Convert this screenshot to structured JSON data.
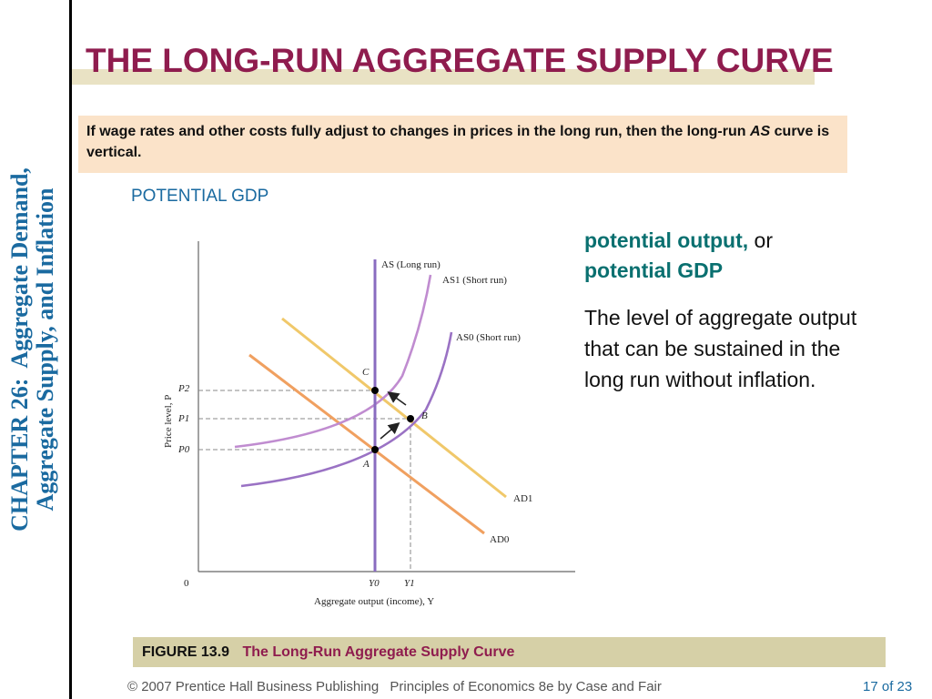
{
  "sidebar": {
    "chapter_label": "CHAPTER 26:",
    "chapter_title_line1": "Aggregate Demand,",
    "chapter_title_line2": "Aggregate Supply, and Inflation"
  },
  "slide": {
    "title": "THE LONG-RUN AGGREGATE SUPPLY CURVE",
    "definition_part1": "If wage rates and other costs fully adjust to changes in prices in the long run, then the long-run ",
    "definition_italic": "AS",
    "definition_part2": " curve is vertical.",
    "subhead": "POTENTIAL GDP"
  },
  "term": {
    "term1": "potential output,",
    "connector": " or",
    "term2": "potential GDP",
    "definition": "The level of aggregate output that can be sustained in the long run without inflation."
  },
  "figure": {
    "ylabel": "Price level, P",
    "xlabel": "Aggregate output (income), Y",
    "origin": "0",
    "y_ticks": [
      "P2",
      "P1",
      "P0"
    ],
    "x_ticks": [
      "Y0",
      "Y1"
    ],
    "curves": {
      "as_long_run": "AS (Long run)",
      "as1_short_run": "AS1 (Short run)",
      "as0_short_run": "AS0 (Short run)",
      "ad1": "AD1",
      "ad0": "AD0"
    },
    "points": [
      "A",
      "B",
      "C"
    ],
    "colors": {
      "as_long_run": "#8a6cc0",
      "as1": "#c08cd0",
      "as0": "#9a72c4",
      "ad1": "#f0c86a",
      "ad0": "#f0a060"
    }
  },
  "caption": {
    "figure_number": "FIGURE 13.9",
    "figure_title": "The Long-Run Aggregate Supply Curve"
  },
  "footer": {
    "copyright": "© 2007 Prentice Hall Business Publishing",
    "book": "Principles of Economics 8e by Case and Fair",
    "page": "17 of 23"
  }
}
